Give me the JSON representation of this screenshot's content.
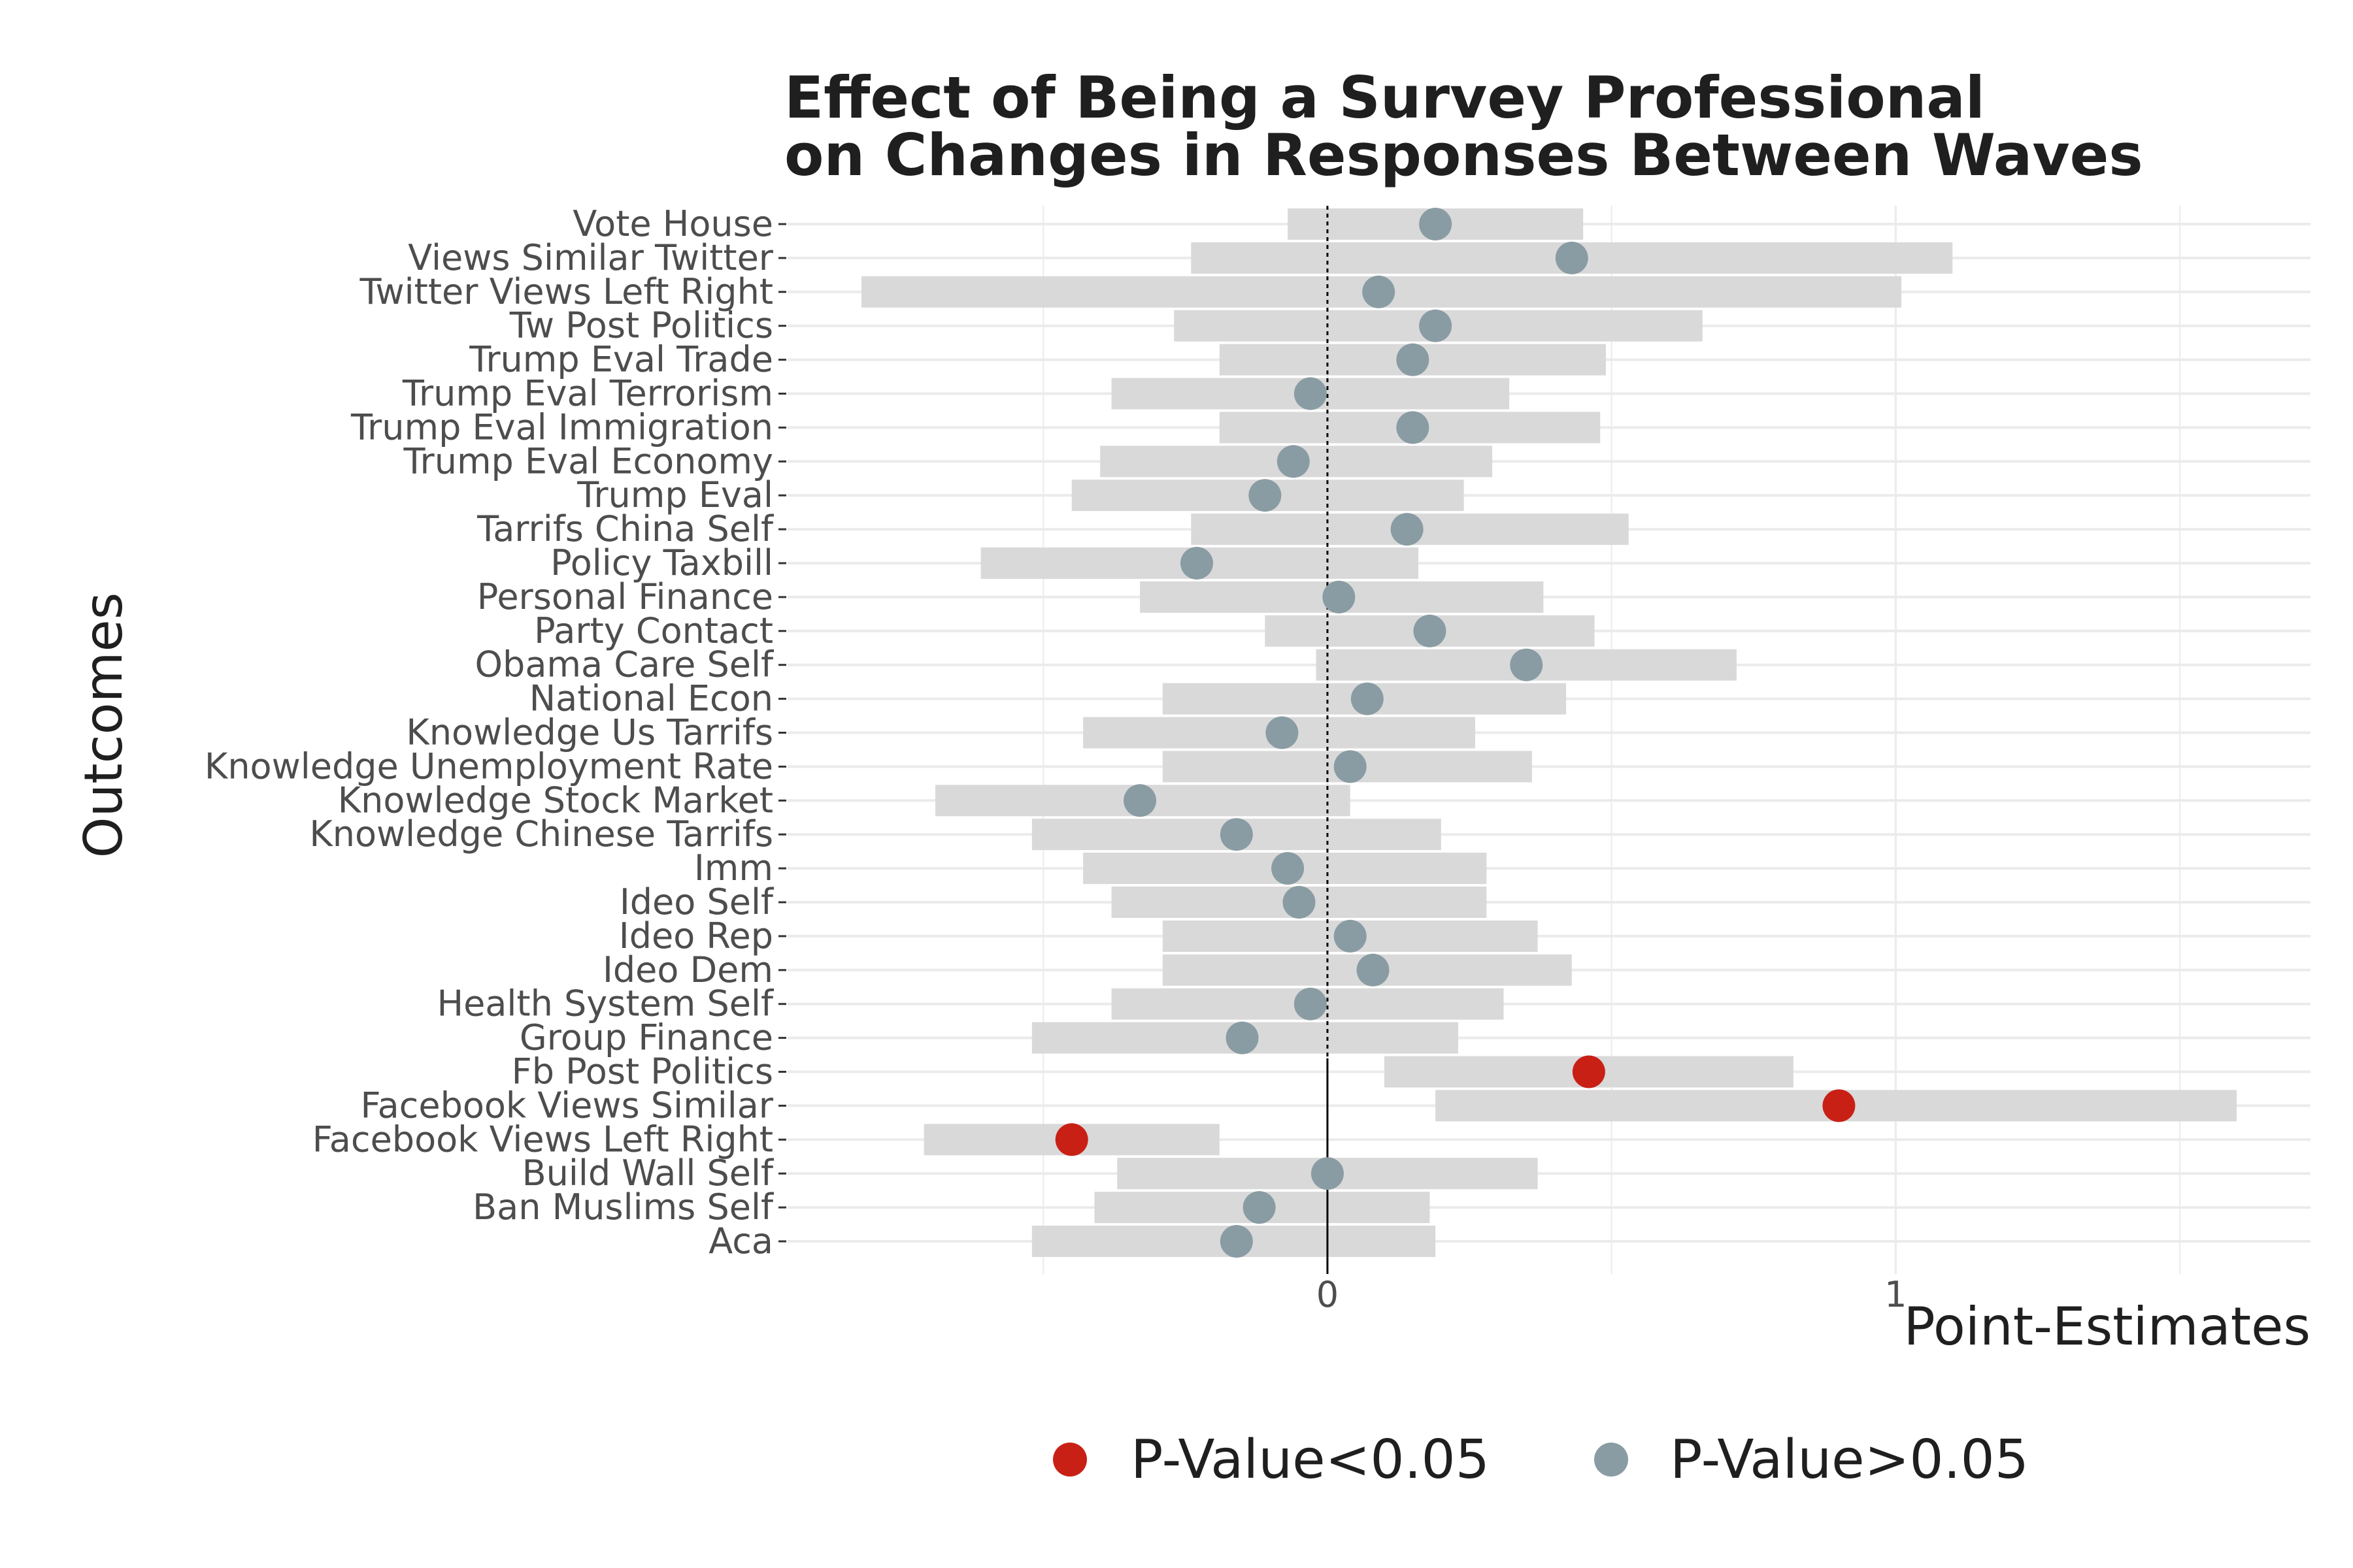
{
  "chart_data": {
    "type": "forest",
    "title_lines": [
      "Effect of Being a Survey Professional",
      "on Changes in Responses Between Waves"
    ],
    "xlabel": "Point-Estimates",
    "ylabel": "Outcomes",
    "xlim": [
      -0.95,
      1.73
    ],
    "x_ticks": [
      0,
      1
    ],
    "x_minor_ticks": [
      -0.5,
      0.5,
      1.5
    ],
    "grid": true,
    "zero_line": true,
    "legend_position": "bottom",
    "legend": [
      {
        "label": "P-Value<0.05",
        "color": "#C92016"
      },
      {
        "label": "P-Value>0.05",
        "color": "#8A9CA3"
      }
    ],
    "colors": {
      "significant": "#C92016",
      "not_significant": "#8A9CA3",
      "interval": "#D9D9D9",
      "grid": "#EBEBEB",
      "text": "#1f1f1f",
      "axis_text": "#4d4d4d"
    },
    "outcomes": [
      {
        "label": "Vote House",
        "estimate": 0.19,
        "lower": -0.07,
        "upper": 0.45,
        "significant": false
      },
      {
        "label": "Views Similar Twitter",
        "estimate": 0.43,
        "lower": -0.24,
        "upper": 1.1,
        "significant": false
      },
      {
        "label": "Twitter Views Left Right",
        "estimate": 0.09,
        "lower": -0.82,
        "upper": 1.01,
        "significant": false
      },
      {
        "label": "Tw Post Politics",
        "estimate": 0.19,
        "lower": -0.27,
        "upper": 0.66,
        "significant": false
      },
      {
        "label": "Trump Eval Trade",
        "estimate": 0.15,
        "lower": -0.19,
        "upper": 0.49,
        "significant": false
      },
      {
        "label": "Trump Eval Terrorism",
        "estimate": -0.03,
        "lower": -0.38,
        "upper": 0.32,
        "significant": false
      },
      {
        "label": "Trump Eval Immigration",
        "estimate": 0.15,
        "lower": -0.19,
        "upper": 0.48,
        "significant": false
      },
      {
        "label": "Trump Eval Economy",
        "estimate": -0.06,
        "lower": -0.4,
        "upper": 0.29,
        "significant": false
      },
      {
        "label": "Trump Eval",
        "estimate": -0.11,
        "lower": -0.45,
        "upper": 0.24,
        "significant": false
      },
      {
        "label": "Tarrifs China Self",
        "estimate": 0.14,
        "lower": -0.24,
        "upper": 0.53,
        "significant": false
      },
      {
        "label": "Policy Taxbill",
        "estimate": -0.23,
        "lower": -0.61,
        "upper": 0.16,
        "significant": false
      },
      {
        "label": "Personal Finance",
        "estimate": 0.02,
        "lower": -0.33,
        "upper": 0.38,
        "significant": false
      },
      {
        "label": "Party Contact",
        "estimate": 0.18,
        "lower": -0.11,
        "upper": 0.47,
        "significant": false
      },
      {
        "label": "Obama Care Self",
        "estimate": 0.35,
        "lower": -0.02,
        "upper": 0.72,
        "significant": false
      },
      {
        "label": "National Econ",
        "estimate": 0.07,
        "lower": -0.29,
        "upper": 0.42,
        "significant": false
      },
      {
        "label": "Knowledge Us Tarrifs",
        "estimate": -0.08,
        "lower": -0.43,
        "upper": 0.26,
        "significant": false
      },
      {
        "label": "Knowledge Unemployment Rate",
        "estimate": 0.04,
        "lower": -0.29,
        "upper": 0.36,
        "significant": false
      },
      {
        "label": "Knowledge Stock Market",
        "estimate": -0.33,
        "lower": -0.69,
        "upper": 0.04,
        "significant": false
      },
      {
        "label": "Knowledge Chinese Tarrifs",
        "estimate": -0.16,
        "lower": -0.52,
        "upper": 0.2,
        "significant": false
      },
      {
        "label": "Imm",
        "estimate": -0.07,
        "lower": -0.43,
        "upper": 0.28,
        "significant": false
      },
      {
        "label": "Ideo Self",
        "estimate": -0.05,
        "lower": -0.38,
        "upper": 0.28,
        "significant": false
      },
      {
        "label": "Ideo Rep",
        "estimate": 0.04,
        "lower": -0.29,
        "upper": 0.37,
        "significant": false
      },
      {
        "label": "Ideo Dem",
        "estimate": 0.08,
        "lower": -0.29,
        "upper": 0.43,
        "significant": false
      },
      {
        "label": "Health System Self",
        "estimate": -0.03,
        "lower": -0.38,
        "upper": 0.31,
        "significant": false
      },
      {
        "label": "Group Finance",
        "estimate": -0.15,
        "lower": -0.52,
        "upper": 0.23,
        "significant": false
      },
      {
        "label": "Fb Post Politics",
        "estimate": 0.46,
        "lower": 0.1,
        "upper": 0.82,
        "significant": true
      },
      {
        "label": "Facebook Views Similar",
        "estimate": 0.9,
        "lower": 0.19,
        "upper": 1.6,
        "significant": true
      },
      {
        "label": "Facebook Views Left Right",
        "estimate": -0.45,
        "lower": -0.71,
        "upper": -0.19,
        "significant": true
      },
      {
        "label": "Build Wall Self",
        "estimate": 0.0,
        "lower": -0.37,
        "upper": 0.37,
        "significant": false
      },
      {
        "label": "Ban Muslims Self",
        "estimate": -0.12,
        "lower": -0.41,
        "upper": 0.18,
        "significant": false
      },
      {
        "label": "Aca",
        "estimate": -0.16,
        "lower": -0.52,
        "upper": 0.19,
        "significant": false
      }
    ]
  }
}
